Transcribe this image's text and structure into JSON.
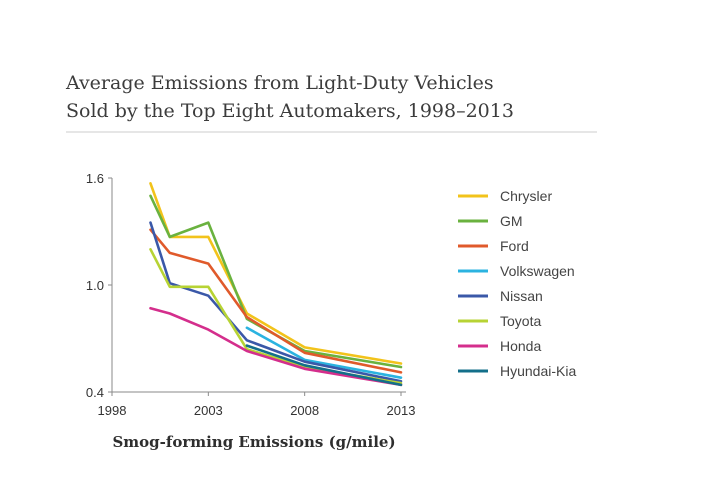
{
  "chart_data": {
    "type": "line",
    "title": [
      "Average Emissions from Light-Duty Vehicles",
      "Sold by the Top Eight Automakers, 1998–2013"
    ],
    "xlabel": "Smog-forming Emissions (g/mile)",
    "ylabel": "",
    "xlim": [
      1998,
      2013
    ],
    "ylim": [
      0.4,
      1.6
    ],
    "xticks": [
      1998,
      2003,
      2008,
      2013
    ],
    "yticks": [
      "1.6",
      "1.0",
      "0.4"
    ],
    "yticks_values": [
      1.6,
      1.0,
      0.4
    ],
    "grid": false,
    "legend_position": "right",
    "series": [
      {
        "name": "Chrysler",
        "color": "#f2c31b",
        "x": [
          2000,
          2001,
          2003,
          2005,
          2008,
          2013
        ],
        "y": [
          1.57,
          1.27,
          1.27,
          0.84,
          0.65,
          0.56
        ]
      },
      {
        "name": "GM",
        "color": "#6ab23f",
        "x": [
          2000,
          2001,
          2003,
          2005,
          2008,
          2013
        ],
        "y": [
          1.5,
          1.27,
          1.35,
          0.81,
          0.63,
          0.54
        ]
      },
      {
        "name": "Ford",
        "color": "#e05a2b",
        "x": [
          2000,
          2001,
          2003,
          2005,
          2008,
          2013
        ],
        "y": [
          1.31,
          1.18,
          1.12,
          0.82,
          0.62,
          0.51
        ]
      },
      {
        "name": "Volkswagen",
        "color": "#2bb3e0",
        "x": [
          2005,
          2008,
          2013
        ],
        "y": [
          0.76,
          0.58,
          0.48
        ]
      },
      {
        "name": "Nissan",
        "color": "#3a58a8",
        "x": [
          2000,
          2001,
          2003,
          2005,
          2008,
          2013
        ],
        "y": [
          1.35,
          1.01,
          0.94,
          0.69,
          0.57,
          0.46
        ]
      },
      {
        "name": "Toyota",
        "color": "#b7d334",
        "x": [
          2000,
          2001,
          2003,
          2005,
          2008,
          2013
        ],
        "y": [
          1.2,
          0.99,
          0.99,
          0.64,
          0.54,
          0.45
        ]
      },
      {
        "name": "Honda",
        "color": "#d42e8c",
        "x": [
          2000,
          2001,
          2003,
          2005,
          2008,
          2013
        ],
        "y": [
          0.87,
          0.84,
          0.75,
          0.63,
          0.53,
          0.44
        ]
      },
      {
        "name": "Hyundai-Kia",
        "color": "#136f8a",
        "x": [
          2005,
          2008,
          2013
        ],
        "y": [
          0.66,
          0.55,
          0.44
        ]
      }
    ]
  }
}
